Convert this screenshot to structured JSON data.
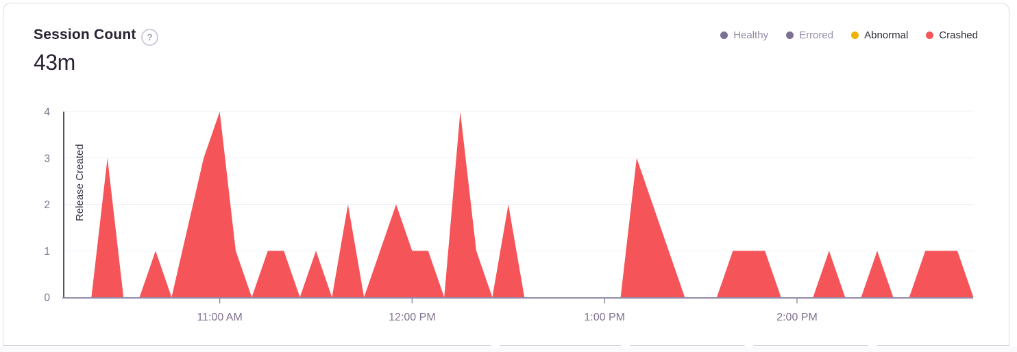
{
  "card": {
    "title": "Session Count",
    "help_symbol": "?",
    "total_sessions": "43m"
  },
  "legend": {
    "items": [
      {
        "label": "Healthy",
        "color": "#7c7192",
        "selected": false
      },
      {
        "label": "Errored",
        "color": "#7c7192",
        "selected": false
      },
      {
        "label": "Abnormal",
        "color": "#efb007",
        "selected": true
      },
      {
        "label": "Crashed",
        "color": "#f55459",
        "selected": true
      }
    ]
  },
  "chart_data": {
    "type": "area",
    "title": "Session Count",
    "series": [
      {
        "name": "Crashed",
        "color": "#f55459",
        "values": [
          0,
          0,
          3,
          0,
          0,
          1,
          0,
          1.5,
          3,
          4,
          1,
          0,
          1,
          1,
          0,
          1,
          0,
          2,
          0,
          1,
          2,
          1,
          1,
          0,
          4,
          1,
          0,
          2,
          0,
          0,
          0,
          0,
          0,
          0,
          0,
          3,
          2,
          1,
          0,
          0,
          0,
          1,
          1,
          1,
          0,
          0,
          0,
          1,
          0,
          0,
          1,
          0,
          0,
          1,
          1,
          1,
          0
        ]
      }
    ],
    "x_start": "10:15 AM",
    "x_end": "2:55 PM",
    "x_interval_minutes": 5,
    "x_tick_labels": [
      "11:00 AM",
      "12:00 PM",
      "1:00 PM",
      "2:00 PM"
    ],
    "x_tick_indices": [
      9,
      21,
      33,
      45
    ],
    "y_ticks": [
      0,
      1,
      2,
      3,
      4
    ],
    "ylim": [
      0,
      4
    ],
    "grid": "horizontal-only",
    "legend_position": "top-right",
    "annotations": [
      {
        "type": "vertical-line",
        "label": "Release Created",
        "position": "left-edge"
      }
    ],
    "colors": {
      "axis_line": "#948ca6",
      "tick_label": "#80708f",
      "gridline": "#f1eff5",
      "release_line": "#574f63",
      "release_label_text": "#342c3f"
    }
  }
}
